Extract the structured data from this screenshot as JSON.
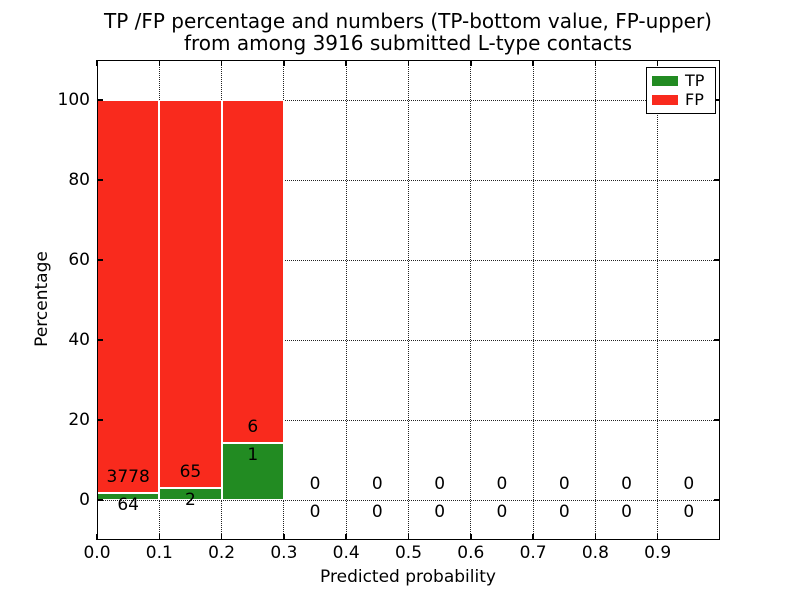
{
  "figure": {
    "title_line1": "TP /FP percentage and numbers (TP-bottom value, FP-upper)",
    "title_line2": "from among 3916 submitted L-type contacts"
  },
  "chart_data": {
    "type": "bar",
    "stacked": true,
    "normalized_to_percent": true,
    "title": "TP /FP percentage and numbers (TP-bottom value, FP-upper)\nfrom among 3916 submitted L-type contacts",
    "xlabel": "Predicted probability",
    "ylabel": "Percentage",
    "xlim": [
      0,
      1.0
    ],
    "ylim": [
      -10,
      110
    ],
    "xticks": [
      0.0,
      0.1,
      0.2,
      0.3,
      0.4,
      0.5,
      0.6,
      0.7,
      0.8,
      0.9
    ],
    "yticks": [
      0,
      20,
      40,
      60,
      80,
      100
    ],
    "grid": "dotted, both axes",
    "legend_position": "upper-right",
    "legend": [
      {
        "label": "TP",
        "color": "#228b22"
      },
      {
        "label": "FP",
        "color": "#f92a1d"
      }
    ],
    "total_contacts": 3916,
    "bin_width": 0.1,
    "categories": [
      "0.0-0.1",
      "0.1-0.2",
      "0.2-0.3",
      "0.3-0.4",
      "0.4-0.5",
      "0.5-0.6",
      "0.6-0.7",
      "0.7-0.8",
      "0.8-0.9",
      "0.9-1.0"
    ],
    "bins": [
      {
        "x0": 0.0,
        "x1": 0.1,
        "tp_count": 64,
        "fp_count": 3778,
        "tp_pct": 1.67,
        "fp_pct": 98.33
      },
      {
        "x0": 0.1,
        "x1": 0.2,
        "tp_count": 2,
        "fp_count": 65,
        "tp_pct": 2.99,
        "fp_pct": 97.01
      },
      {
        "x0": 0.2,
        "x1": 0.3,
        "tp_count": 1,
        "fp_count": 6,
        "tp_pct": 14.29,
        "fp_pct": 85.71
      },
      {
        "x0": 0.3,
        "x1": 0.4,
        "tp_count": 0,
        "fp_count": 0,
        "tp_pct": 0,
        "fp_pct": 0
      },
      {
        "x0": 0.4,
        "x1": 0.5,
        "tp_count": 0,
        "fp_count": 0,
        "tp_pct": 0,
        "fp_pct": 0
      },
      {
        "x0": 0.5,
        "x1": 0.6,
        "tp_count": 0,
        "fp_count": 0,
        "tp_pct": 0,
        "fp_pct": 0
      },
      {
        "x0": 0.6,
        "x1": 0.7,
        "tp_count": 0,
        "fp_count": 0,
        "tp_pct": 0,
        "fp_pct": 0
      },
      {
        "x0": 0.7,
        "x1": 0.8,
        "tp_count": 0,
        "fp_count": 0,
        "tp_pct": 0,
        "fp_pct": 0
      },
      {
        "x0": 0.8,
        "x1": 0.9,
        "tp_count": 0,
        "fp_count": 0,
        "tp_pct": 0,
        "fp_pct": 0
      },
      {
        "x0": 0.9,
        "x1": 1.0,
        "tp_count": 0,
        "fp_count": 0,
        "tp_pct": 0,
        "fp_pct": 0
      }
    ]
  }
}
